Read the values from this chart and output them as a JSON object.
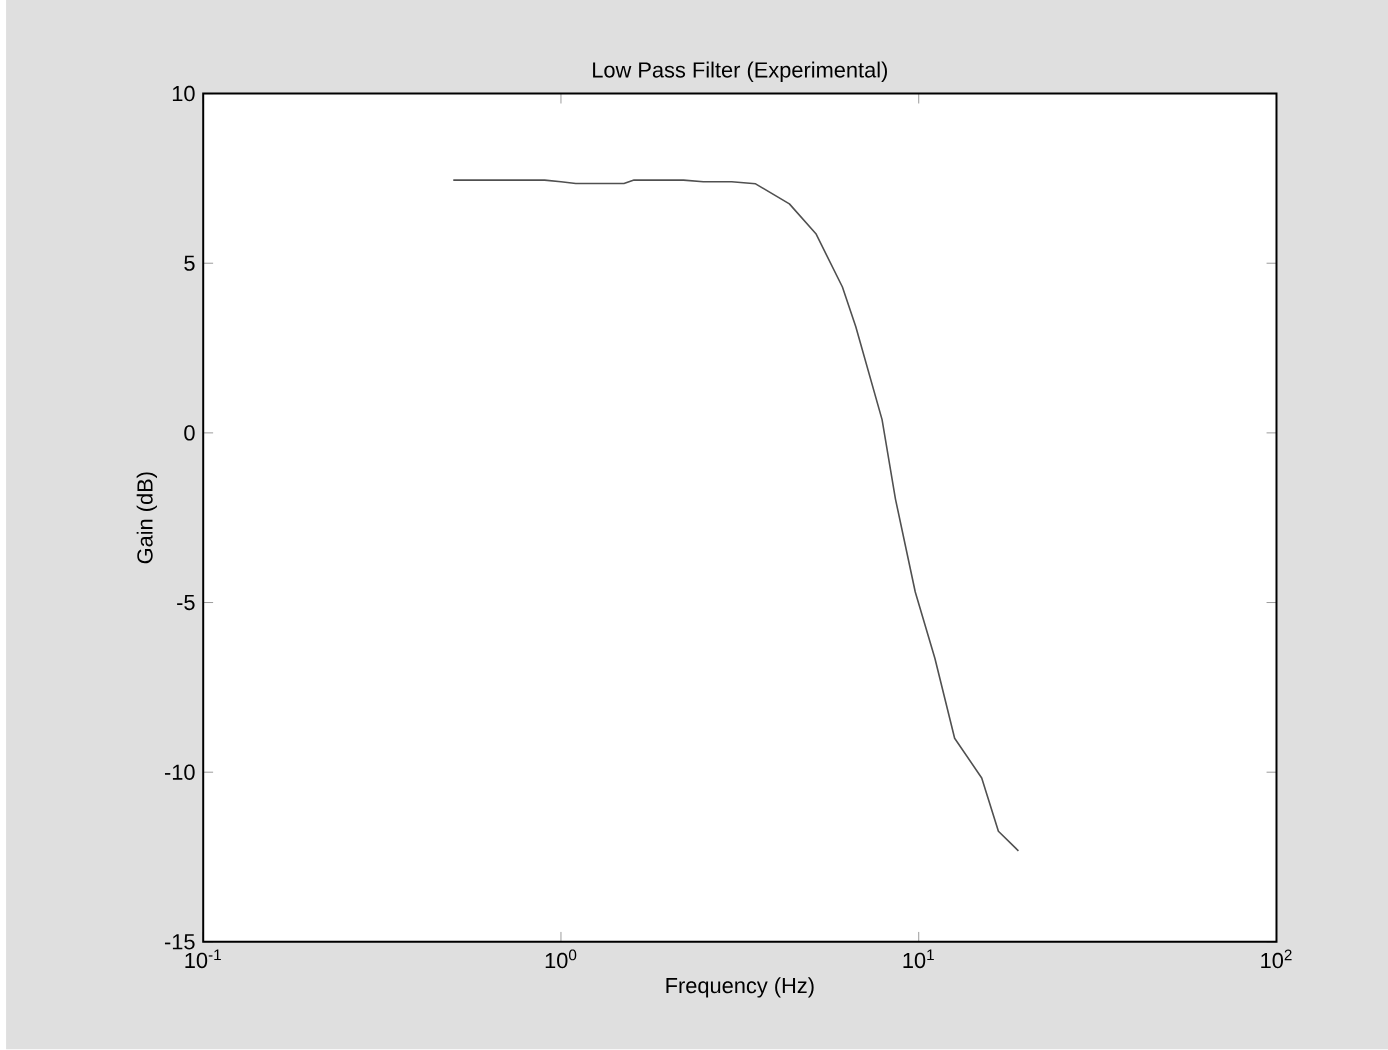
{
  "chart_data": {
    "type": "line",
    "title": "Low Pass Filter (Experimental)",
    "xlabel": "Frequency (Hz)",
    "ylabel": "Gain (dB)",
    "log": "x",
    "grid": false,
    "marker": "none",
    "line_style": "solid",
    "xlim": [
      0.1,
      100
    ],
    "ylim": [
      -15,
      10
    ],
    "xticks": [
      {
        "value": 0.1,
        "label": "10$^{-1}$"
      },
      {
        "value": 1,
        "label": "10$^{0}$"
      },
      {
        "value": 10,
        "label": "10$^{1}$"
      },
      {
        "value": 100,
        "label": "10$^{2}$"
      }
    ],
    "yticks": [
      -15,
      -10,
      -5,
      0,
      5,
      10
    ],
    "series": [
      {
        "color": "#505050",
        "x": [
          0.5,
          0.9,
          1.0,
          1.1,
          1.5,
          1.6,
          2.2,
          2.5,
          3.0,
          3.5,
          4.35,
          5.16,
          6.12,
          6.67,
          7.9,
          8.61,
          9.78,
          11.1,
          12.6,
          15.0,
          16.7,
          19.0
        ],
        "values": [
          7.45,
          7.45,
          7.4,
          7.35,
          7.35,
          7.45,
          7.45,
          7.4,
          7.4,
          7.34,
          6.75,
          5.87,
          4.3,
          3.13,
          0.39,
          -1.95,
          -4.69,
          -6.65,
          -9.0,
          -10.17,
          -11.74,
          -12.32
        ]
      }
    ]
  }
}
